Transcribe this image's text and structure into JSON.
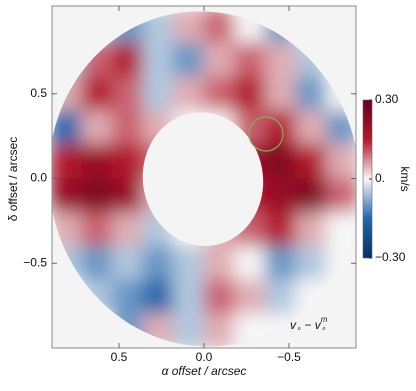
{
  "chart_data": {
    "type": "heatmap",
    "xlabel": "α offset / arcsec",
    "ylabel": "δ offset / arcsec",
    "xlim": [
      0.894,
      -0.894
    ],
    "ylim": [
      -1.0,
      1.018
    ],
    "xticks": [
      0.5,
      {
        "value": 0,
        "label": "0.0"
      },
      {
        "value": -0.5,
        "label": "−0.5"
      }
    ],
    "yticks": [
      0.5,
      {
        "value": 0,
        "label": "0.0"
      },
      {
        "value": -0.5,
        "label": "−0.5"
      }
    ],
    "x": [
      0.81,
      0.63,
      0.45,
      0.27,
      0.09,
      -0.09,
      -0.27,
      -0.45,
      -0.63,
      -0.81
    ],
    "y": [
      0.9,
      0.7,
      0.5,
      0.3,
      0.1,
      -0.1,
      -0.3,
      -0.5,
      -0.7,
      -0.9
    ],
    "z": [
      [
        0,
        -0.05,
        -0.1,
        -0.05,
        0.05,
        0.1,
        0,
        -0.1,
        0,
        0
      ],
      [
        -0.05,
        0.1,
        0.15,
        -0.05,
        -0.1,
        0.05,
        0.1,
        0.05,
        -0.05,
        0
      ],
      [
        0.05,
        0.15,
        0.1,
        -0.05,
        0.05,
        0.1,
        0.15,
        0.05,
        -0.1,
        0
      ],
      [
        -0.15,
        0.05,
        0.1,
        0.05,
        0,
        0,
        0.1,
        0.15,
        0.05,
        -0.1
      ],
      [
        0.15,
        0.2,
        0.15,
        0.1,
        0,
        0,
        0.2,
        0.25,
        0.15,
        0.05
      ],
      [
        0.2,
        0.25,
        0.2,
        0.05,
        0,
        0,
        0.15,
        0.2,
        0.25,
        0.1
      ],
      [
        0.05,
        0.1,
        0.05,
        -0.05,
        0,
        0.05,
        0.1,
        0.15,
        0.05,
        0
      ],
      [
        -0.05,
        -0.1,
        -0.05,
        -0.1,
        -0.05,
        0.05,
        0,
        -0.1,
        -0.05,
        0
      ],
      [
        0,
        -0.05,
        -0.1,
        -0.15,
        -0.05,
        0.1,
        0.05,
        -0.05,
        0,
        0
      ],
      [
        0,
        0,
        -0.1,
        0.05,
        -0.05,
        0.05,
        0,
        0,
        0,
        0
      ]
    ],
    "colormap": [
      "#053061",
      "#2166ac",
      "#f7f7f7",
      "#b2182b",
      "#67001f"
    ],
    "zlim": [
      -0.3,
      0.3
    ],
    "colorbar_ticks": [
      {
        "value": 0.3,
        "label": "0.30"
      },
      {
        "value": 0,
        "label": "0."
      },
      {
        "value": -0.3,
        "label": "−0.30"
      }
    ],
    "colorbar_label": "km/s",
    "annotation": [
      "v",
      "∘",
      " − v",
      "∘",
      "m"
    ]
  }
}
